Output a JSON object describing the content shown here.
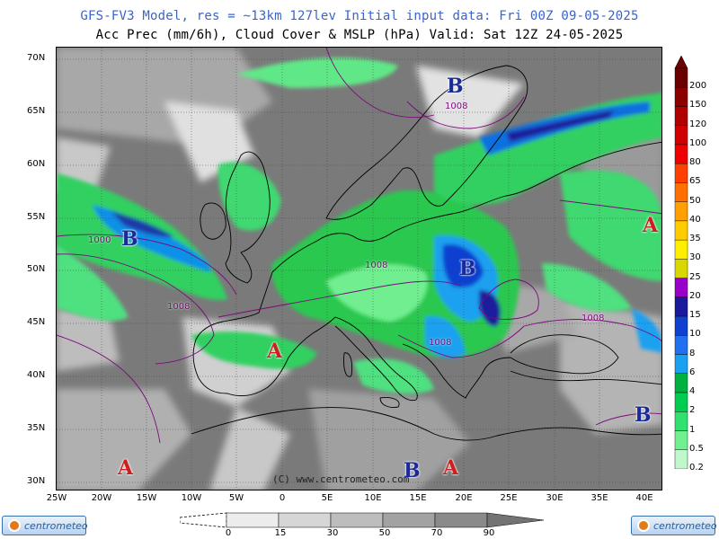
{
  "header": {
    "line1": "GFS-FV3 Model, res = ~13km 127lev   Initial input data: Fri 00Z 09-05-2025",
    "line2": "Acc Prec (mm/6h), Cloud Cover & MSLP (hPa)  Valid: Sat 12Z 24-05-2025"
  },
  "map": {
    "lat_labels": [
      "70N",
      "65N",
      "60N",
      "55N",
      "50N",
      "45N",
      "40N",
      "35N",
      "30N"
    ],
    "lon_labels": [
      "25W",
      "20W",
      "15W",
      "10W",
      "5W",
      "0",
      "5E",
      "10E",
      "15E",
      "20E",
      "25E",
      "30E",
      "35E",
      "40E"
    ],
    "copyright": "(C) www.centrometeo.com",
    "pressure_centers": [
      {
        "label": "B",
        "kind": "low"
      },
      {
        "label": "B",
        "kind": "low"
      },
      {
        "label": "B",
        "kind": "low"
      },
      {
        "label": "B",
        "kind": "low"
      },
      {
        "label": "B",
        "kind": "low"
      },
      {
        "label": "A",
        "kind": "high"
      },
      {
        "label": "A",
        "kind": "high"
      },
      {
        "label": "A",
        "kind": "high"
      },
      {
        "label": "A",
        "kind": "high"
      }
    ],
    "isobar_labels": [
      "1008",
      "1000",
      "1008",
      "1008",
      "1008",
      "1008"
    ]
  },
  "precip_scale": {
    "labels": [
      "200",
      "150",
      "120",
      "100",
      "80",
      "65",
      "50",
      "40",
      "35",
      "30",
      "25",
      "20",
      "15",
      "10",
      "8",
      "6",
      "4",
      "2",
      "1",
      "0.5",
      "0.2"
    ],
    "colors": [
      "#6a0000",
      "#8c0000",
      "#b00000",
      "#d00000",
      "#ee0000",
      "#ff4000",
      "#ff7000",
      "#ffa000",
      "#ffcc00",
      "#ffee00",
      "#d8d800",
      "#9900cc",
      "#1a1a9c",
      "#1040d0",
      "#2070f0",
      "#1aa0f0",
      "#00b040",
      "#00cc50",
      "#30e070",
      "#70f090",
      "#c0f8cc"
    ]
  },
  "cloud_scale": {
    "labels": [
      "0",
      "15",
      "30",
      "50",
      "70",
      "90"
    ]
  },
  "logos": {
    "left": "centrometeo",
    "right": "centrometeo"
  }
}
